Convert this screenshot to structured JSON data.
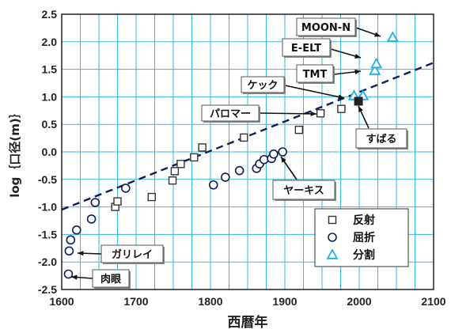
{
  "chart_data": {
    "type": "scatter",
    "xlabel": "西暦年",
    "ylabel": "log｛口径(m)｝",
    "xlim": [
      1600,
      2100
    ],
    "ylim": [
      -2.5,
      2.5
    ],
    "x_ticks": [
      "1600",
      "1700",
      "1800",
      "1900",
      "2000",
      "2100"
    ],
    "y_ticks": [
      "-2.5",
      "-2.0",
      "-1.5",
      "-1.0",
      "-0.5",
      "0.0",
      "0.5",
      "1.0",
      "1.5",
      "2.0",
      "2.5"
    ],
    "grid": true,
    "colors": {
      "reflector": "#333333",
      "refractor": "#0a1e5c",
      "segmented": "#1ab2e6",
      "trend": "#0a1e5c",
      "grid": "#38b6e6",
      "filled": "#222222"
    },
    "legend": {
      "position": "bottom-right",
      "entries": [
        {
          "label": "反射",
          "marker": "square"
        },
        {
          "label": "屈折",
          "marker": "circle"
        },
        {
          "label": "分割",
          "marker": "triangle"
        }
      ]
    },
    "trend_line": {
      "style": "dashed",
      "points": [
        [
          1600,
          -1.05
        ],
        [
          2100,
          1.62
        ]
      ]
    },
    "series": [
      {
        "label": "反射",
        "marker": "square",
        "points": [
          [
            1672,
            -1.0
          ],
          [
            1675,
            -0.9
          ],
          [
            1721,
            -0.82
          ],
          [
            1749,
            -0.52
          ],
          [
            1752,
            -0.35
          ],
          [
            1760,
            -0.22
          ],
          [
            1778,
            -0.1
          ],
          [
            1789,
            0.08
          ],
          [
            1845,
            0.26
          ],
          [
            1919,
            0.4
          ],
          [
            1948,
            0.7
          ],
          [
            1976,
            0.78
          ]
        ]
      },
      {
        "label": "屈折",
        "marker": "circle",
        "points": [
          [
            1609,
            -2.22
          ],
          [
            1610,
            -1.8
          ],
          [
            1612,
            -1.6
          ],
          [
            1620,
            -1.42
          ],
          [
            1640,
            -1.22
          ],
          [
            1645,
            -0.92
          ],
          [
            1686,
            -0.66
          ],
          [
            1804,
            -0.6
          ],
          [
            1820,
            -0.46
          ],
          [
            1839,
            -0.34
          ],
          [
            1862,
            -0.3
          ],
          [
            1866,
            -0.22
          ],
          [
            1872,
            -0.14
          ],
          [
            1882,
            -0.12
          ],
          [
            1885,
            -0.04
          ],
          [
            1897,
            0.0
          ]
        ]
      },
      {
        "label": "分割",
        "marker": "triangle",
        "points": [
          [
            1993,
            1.02
          ],
          [
            2005,
            1.02
          ],
          [
            2021,
            1.48
          ],
          [
            2023,
            1.6
          ],
          [
            2045,
            2.08
          ]
        ]
      },
      {
        "label": "",
        "marker": "filled-square",
        "points": [
          [
            1999,
            0.92
          ]
        ]
      }
    ],
    "annotations": [
      {
        "text": "MOON-N",
        "point": [
          2045,
          2.08
        ]
      },
      {
        "text": "E-ELT",
        "point": [
          2021,
          1.62
        ]
      },
      {
        "text": "TMT",
        "point": [
          2021,
          1.48
        ]
      },
      {
        "text": "ケック",
        "point": [
          1993,
          1.02
        ]
      },
      {
        "text": "パロマー",
        "point": [
          1948,
          0.7
        ]
      },
      {
        "text": "すばる",
        "point": [
          1999,
          0.92
        ]
      },
      {
        "text": "ヤーキス",
        "point": [
          1897,
          0.0
        ]
      },
      {
        "text": "ガリレイ",
        "point": [
          1610,
          -1.8
        ]
      },
      {
        "text": "肉眼",
        "point": [
          1609,
          -2.22
        ]
      }
    ]
  }
}
